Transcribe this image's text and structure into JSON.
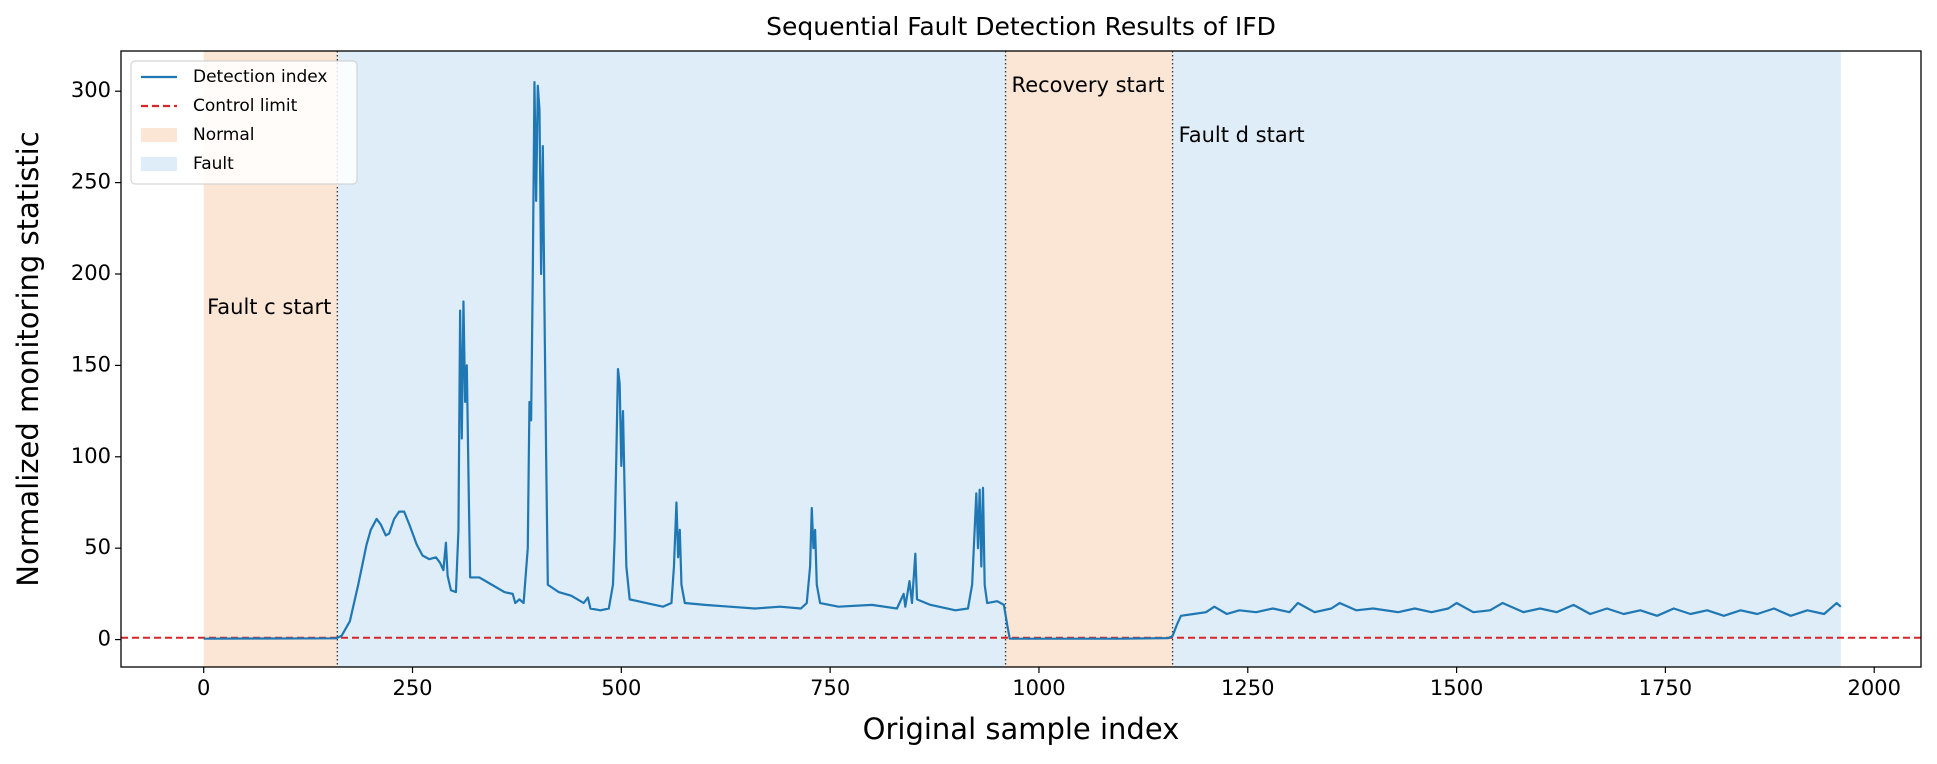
{
  "chart_data": {
    "type": "line",
    "title": "Sequential Fault Detection Results of IFD",
    "xlabel": "Original sample index",
    "ylabel": "Normalized monitoring statistic",
    "xlim": [
      -99,
      2056
    ],
    "ylim": [
      -15,
      322
    ],
    "xticks": [
      0,
      250,
      500,
      750,
      1000,
      1250,
      1500,
      1750,
      2000
    ],
    "yticks": [
      0,
      50,
      100,
      150,
      200,
      250,
      300
    ],
    "legend": "upper left",
    "series": [
      {
        "name": "Detection index",
        "color": "#1f77b4",
        "x": [
          0,
          80,
          158,
          165,
          175,
          185,
          195,
          200,
          207,
          212,
          218,
          222,
          228,
          234,
          240,
          247,
          255,
          262,
          270,
          278,
          283,
          287,
          290,
          292,
          296,
          302,
          305,
          307,
          309,
          311,
          313,
          315,
          317,
          319,
          330,
          345,
          360,
          370,
          373,
          378,
          383,
          388,
          390,
          392,
          394,
          396,
          398,
          400,
          402,
          404,
          406,
          408,
          410,
          412,
          425,
          440,
          455,
          460,
          463,
          475,
          485,
          490,
          492,
          494,
          496,
          498,
          500,
          502,
          504,
          506,
          510,
          530,
          550,
          560,
          563,
          566,
          568,
          570,
          572,
          576,
          600,
          630,
          660,
          690,
          715,
          722,
          726,
          728,
          730,
          732,
          734,
          738,
          760,
          800,
          830,
          838,
          840,
          845,
          848,
          852,
          854,
          870,
          900,
          915,
          920,
          923,
          925,
          927,
          929,
          931,
          933,
          935,
          938,
          950,
          958,
          962,
          965,
          1000,
          1100,
          1155,
          1160,
          1165,
          1170,
          1185,
          1200,
          1210,
          1225,
          1240,
          1260,
          1280,
          1300,
          1310,
          1330,
          1350,
          1360,
          1380,
          1400,
          1430,
          1450,
          1470,
          1490,
          1500,
          1520,
          1540,
          1555,
          1580,
          1600,
          1620,
          1640,
          1660,
          1680,
          1700,
          1720,
          1740,
          1760,
          1780,
          1800,
          1820,
          1840,
          1860,
          1880,
          1900,
          1920,
          1940,
          1955,
          1960
        ],
        "values": [
          0.5,
          0.6,
          0.7,
          2,
          10,
          30,
          52,
          60,
          66,
          63,
          57,
          58,
          66,
          70,
          70,
          62,
          52,
          46,
          44,
          45,
          42,
          38,
          53,
          35,
          27,
          26,
          60,
          180,
          110,
          185,
          130,
          150,
          90,
          34,
          34,
          30,
          26,
          25,
          20,
          22,
          20,
          50,
          130,
          120,
          200,
          305,
          240,
          303,
          290,
          200,
          270,
          180,
          100,
          30,
          26,
          24,
          20,
          23,
          17,
          16,
          17,
          30,
          55,
          100,
          148,
          140,
          95,
          125,
          80,
          40,
          22,
          20,
          18,
          20,
          40,
          75,
          45,
          60,
          30,
          20,
          19,
          18,
          17,
          18,
          17,
          20,
          40,
          72,
          50,
          60,
          30,
          20,
          18,
          19,
          17,
          25,
          18,
          32,
          20,
          47,
          22,
          19,
          16,
          17,
          30,
          60,
          80,
          50,
          82,
          40,
          83,
          30,
          20,
          21,
          19,
          8,
          0.5,
          0.5,
          0.5,
          0.8,
          2,
          8,
          13,
          14,
          15,
          18,
          14,
          16,
          15,
          17,
          15,
          20,
          15,
          17,
          20,
          16,
          17,
          15,
          17,
          15,
          17,
          20,
          15,
          16,
          20,
          15,
          17,
          15,
          19,
          14,
          17,
          14,
          16,
          13,
          17,
          14,
          16,
          13,
          16,
          14,
          17,
          13,
          16,
          14,
          20,
          18
        ]
      }
    ],
    "control_limit": {
      "name": "Control limit",
      "color": "#d62728",
      "value": 1
    },
    "regions": [
      {
        "name": "Normal",
        "color": "#fbe6d6",
        "spans": [
          [
            0,
            160
          ],
          [
            960,
            1160
          ]
        ]
      },
      {
        "name": "Fault",
        "color": "#deedf8",
        "spans": [
          [
            160,
            960
          ],
          [
            1160,
            1960
          ]
        ]
      }
    ],
    "vlines": [
      160,
      960,
      1160
    ],
    "annotations": [
      "Fault c start",
      "Recovery start",
      "Fault d start"
    ]
  }
}
